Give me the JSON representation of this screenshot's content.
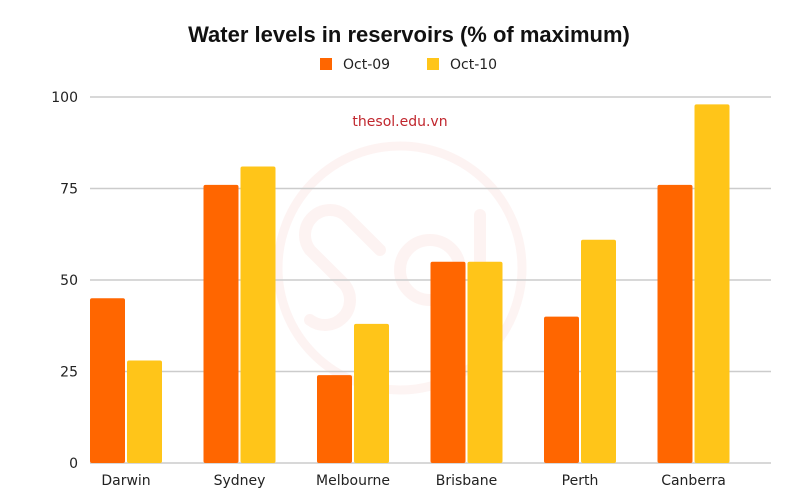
{
  "watermark": {
    "text": "thesol.edu.vn",
    "logo": "sol-circle-logo",
    "color": "#c0262d"
  },
  "chart_data": {
    "type": "bar",
    "title": "Water levels in reservoirs (% of maximum)",
    "xlabel": "",
    "ylabel": "",
    "categories": [
      "Darwin",
      "Sydney",
      "Melbourne",
      "Brisbane",
      "Perth",
      "Canberra"
    ],
    "series": [
      {
        "name": "Oct-09",
        "color": "#ff6600",
        "values": [
          45,
          76,
          24,
          55,
          40,
          76
        ]
      },
      {
        "name": "Oct-10",
        "color": "#ffc519",
        "values": [
          28,
          81,
          38,
          55,
          61,
          98
        ]
      }
    ],
    "ylim": [
      0,
      100
    ],
    "yticks": [
      0,
      25,
      50,
      75,
      100
    ],
    "grid": true,
    "legend_position": "top-center"
  }
}
